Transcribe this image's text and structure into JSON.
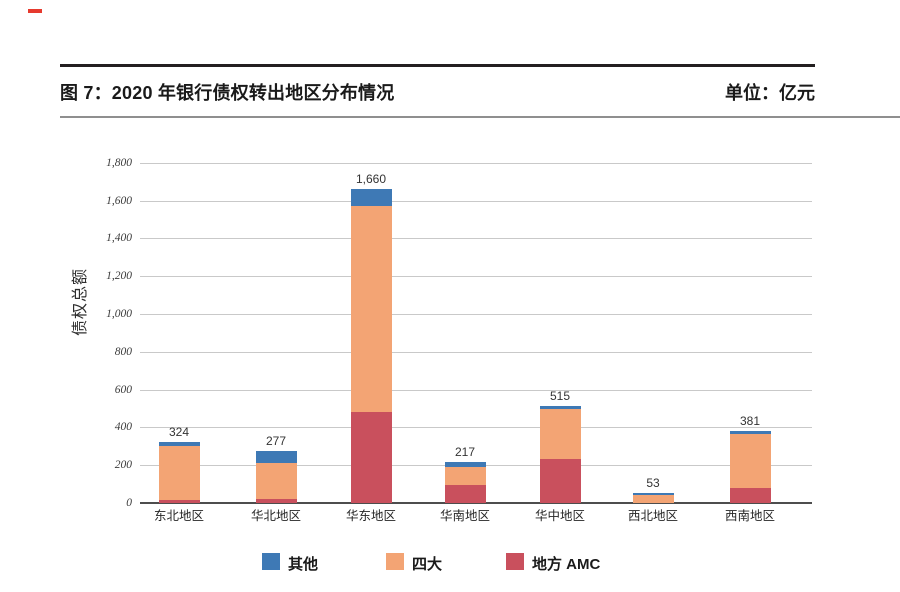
{
  "header": {
    "title": "图 7：2020 年银行债权转出地区分布情况",
    "unit_label": "单位：亿元"
  },
  "chart_data": {
    "type": "bar",
    "stacked": true,
    "title": "图 7：2020 年银行债权转出地区分布情况",
    "unit": "亿元",
    "ylabel": "债权总额",
    "categories": [
      "东北地区",
      "华北地区",
      "华东地区",
      "华南地区",
      "华中地区",
      "西北地区",
      "西南地区"
    ],
    "series": [
      {
        "name": "地方 AMC",
        "color": "#c9505d",
        "values": [
          15,
          22,
          480,
          95,
          233,
          0,
          80
        ]
      },
      {
        "name": "四大",
        "color": "#f3a474",
        "values": [
          289,
          190,
          1090,
          97,
          262,
          45,
          286
        ]
      },
      {
        "name": "其他",
        "color": "#3e79b5",
        "values": [
          20,
          65,
          90,
          25,
          20,
          8,
          15
        ]
      }
    ],
    "totals": [
      324,
      277,
      1660,
      217,
      515,
      53,
      381
    ],
    "total_labels": [
      "324",
      "277",
      "1,660",
      "217",
      "515",
      "53",
      "381"
    ],
    "ylim": [
      0,
      1800
    ],
    "ytick_step": 200,
    "ytick_labels": [
      "0",
      "200",
      "400",
      "600",
      "800",
      "1,000",
      "1,200",
      "1,400",
      "1,600",
      "1,800"
    ],
    "grid": true,
    "legend_position": "bottom",
    "legend": [
      "其他",
      "四大",
      "地方 AMC"
    ]
  },
  "colors": {
    "other_blue": "#3e79b5",
    "big4_orange": "#f3a474",
    "local_amc_red": "#c9505d",
    "gridline": "#c9c9c9",
    "axis": "#4d4d4d",
    "corner_mark": "#e63a2e"
  }
}
